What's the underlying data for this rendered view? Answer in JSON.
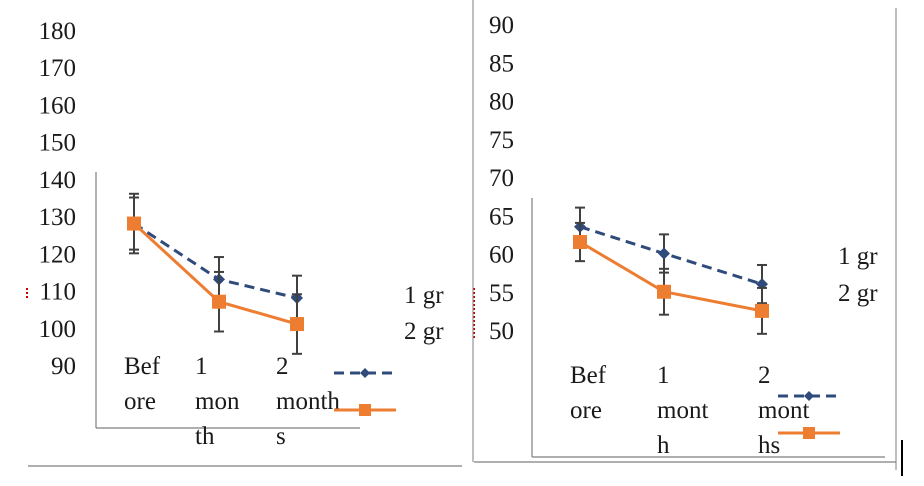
{
  "colors": {
    "series1": "#2f4b7c",
    "series2": "#ed7d31",
    "axis": "#7f7f7f",
    "errorbar": "#404040",
    "text": "#1a1a1a",
    "marker_red": "#d00000"
  },
  "chart_data": [
    {
      "type": "line",
      "title": "",
      "xlabel": "",
      "ylabel": "",
      "ylim": [
        90,
        180
      ],
      "yticks": [
        "90",
        "100",
        "110",
        "120",
        "130",
        "140",
        "150",
        "160",
        "170",
        "180"
      ],
      "categories": [
        "Before",
        "1 month",
        "2 months"
      ],
      "category_lines": [
        [
          "Bef",
          "ore"
        ],
        [
          "1",
          "mon",
          "th"
        ],
        [
          "2",
          "month",
          "s"
        ]
      ],
      "series": [
        {
          "name": "1 gr",
          "values": [
            128,
            113,
            108
          ],
          "errors": [
            8,
            6,
            6
          ]
        },
        {
          "name": "2 gr",
          "values": [
            128,
            107,
            101
          ],
          "errors": [
            7,
            8,
            8
          ]
        }
      ],
      "legend": "right"
    },
    {
      "type": "line",
      "title": "",
      "xlabel": "",
      "ylabel": "",
      "ylim": [
        50,
        90
      ],
      "yticks": [
        "50",
        "55",
        "60",
        "65",
        "70",
        "75",
        "80",
        "85",
        "90"
      ],
      "categories": [
        "Before",
        "1 month",
        "2 months"
      ],
      "category_lines": [
        [
          "Bef",
          "ore"
        ],
        [
          "1",
          "mont",
          "h"
        ],
        [
          "2",
          "mont",
          "hs"
        ]
      ],
      "series": [
        {
          "name": "1 gr",
          "values": [
            63.5,
            60,
            56
          ],
          "errors": [
            2.5,
            2.5,
            2.5
          ]
        },
        {
          "name": "2 gr",
          "values": [
            61.5,
            55,
            52.5
          ],
          "errors": [
            2.5,
            3,
            3
          ]
        }
      ],
      "legend": "right"
    }
  ]
}
